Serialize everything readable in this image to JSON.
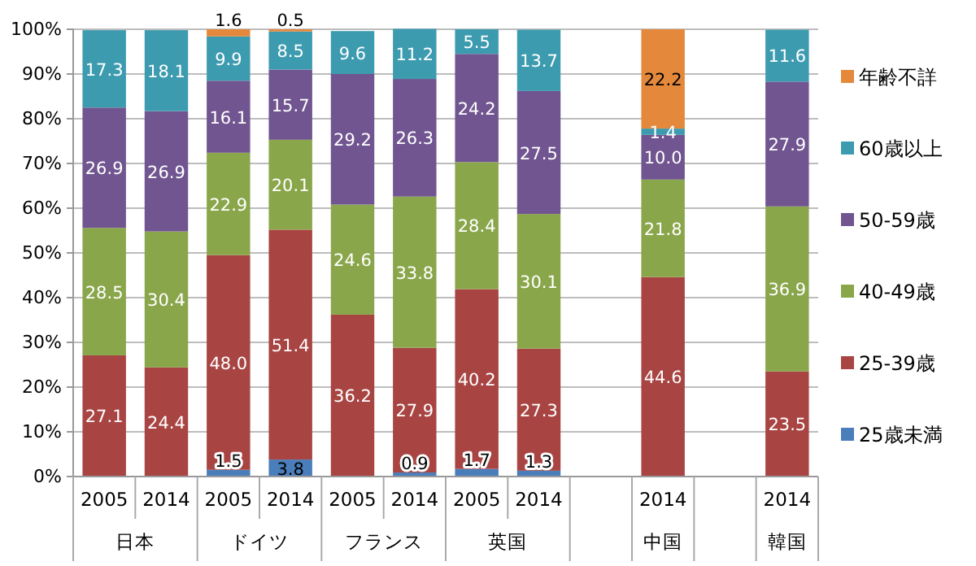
{
  "chart_data": {
    "type": "bar",
    "stacked": true,
    "grid": "y",
    "legend": "right",
    "categories": [
      "2005",
      "2014",
      "2005",
      "2014",
      "2005",
      "2014",
      "2005",
      "2014",
      null,
      "2014",
      null,
      "2014"
    ],
    "series": [
      {
        "name": "25歳未満",
        "color": "#4a7ebb",
        "values": [
          null,
          null,
          1.5,
          3.8,
          null,
          0.9,
          1.7,
          1.3,
          null,
          null,
          null,
          null
        ],
        "value_labels": [
          null,
          null,
          "1.5",
          "3.8",
          null,
          "0.9",
          "1.7",
          "1.3",
          null,
          null,
          null,
          null
        ]
      },
      {
        "name": "25-39歳",
        "color": "#a84543",
        "values": [
          27.1,
          24.4,
          48.0,
          51.4,
          36.2,
          27.9,
          40.2,
          27.3,
          null,
          44.6,
          null,
          23.5
        ],
        "value_labels": [
          "27.1",
          "24.4",
          "48.0",
          "51.4",
          "36.2",
          "27.9",
          "40.2",
          "27.3",
          null,
          "44.6",
          null,
          "23.5"
        ]
      },
      {
        "name": "40-49歳",
        "color": "#8aa64b",
        "values": [
          28.5,
          30.4,
          22.9,
          20.1,
          24.6,
          33.8,
          28.4,
          30.1,
          null,
          21.8,
          null,
          36.9
        ],
        "value_labels": [
          "28.5",
          "30.4",
          "22.9",
          "20.1",
          "24.6",
          "33.8",
          "28.4",
          "30.1",
          null,
          "21.8",
          null,
          "36.9"
        ]
      },
      {
        "name": "50-59歳",
        "color": "#715590",
        "values": [
          26.9,
          26.9,
          16.1,
          15.7,
          29.2,
          26.3,
          24.2,
          27.5,
          null,
          10.0,
          null,
          27.9
        ],
        "value_labels": [
          "26.9",
          "26.9",
          "16.1",
          "15.7",
          "29.2",
          "26.3",
          "24.2",
          "27.5",
          null,
          "10.0",
          null,
          "27.9"
        ]
      },
      {
        "name": "60歳以上",
        "color": "#3d9bb0",
        "values": [
          17.3,
          18.1,
          9.9,
          8.5,
          9.6,
          11.2,
          5.5,
          13.7,
          null,
          1.4,
          null,
          11.6
        ],
        "value_labels": [
          "17.3",
          "18.1",
          "9.9",
          "8.5",
          "9.6",
          "11.2",
          "5.5",
          "13.7",
          null,
          "1.4",
          null,
          "11.6"
        ]
      },
      {
        "name": "年齢不詳",
        "color": "#e4893c",
        "values": [
          null,
          null,
          1.6,
          0.5,
          null,
          null,
          null,
          null,
          null,
          22.2,
          null,
          null
        ],
        "value_labels": [
          null,
          null,
          "1.6",
          "0.5",
          null,
          null,
          null,
          null,
          null,
          "22.2",
          null,
          null
        ]
      }
    ],
    "ylim": [
      0,
      100
    ],
    "yticks": [
      {
        "value": 0,
        "label": "0%"
      },
      {
        "value": 10,
        "label": "10%"
      },
      {
        "value": 20,
        "label": "20%"
      },
      {
        "value": 30,
        "label": "30%"
      },
      {
        "value": 40,
        "label": "40%"
      },
      {
        "value": 50,
        "label": "50%"
      },
      {
        "value": 60,
        "label": "60%"
      },
      {
        "value": 70,
        "label": "70%"
      },
      {
        "value": 80,
        "label": "80%"
      },
      {
        "value": 90,
        "label": "90%"
      },
      {
        "value": 100,
        "label": "100%"
      }
    ],
    "annotations": [
      "日本",
      "ドイツ",
      "フランス",
      "英国",
      "中国",
      "韓国"
    ]
  }
}
